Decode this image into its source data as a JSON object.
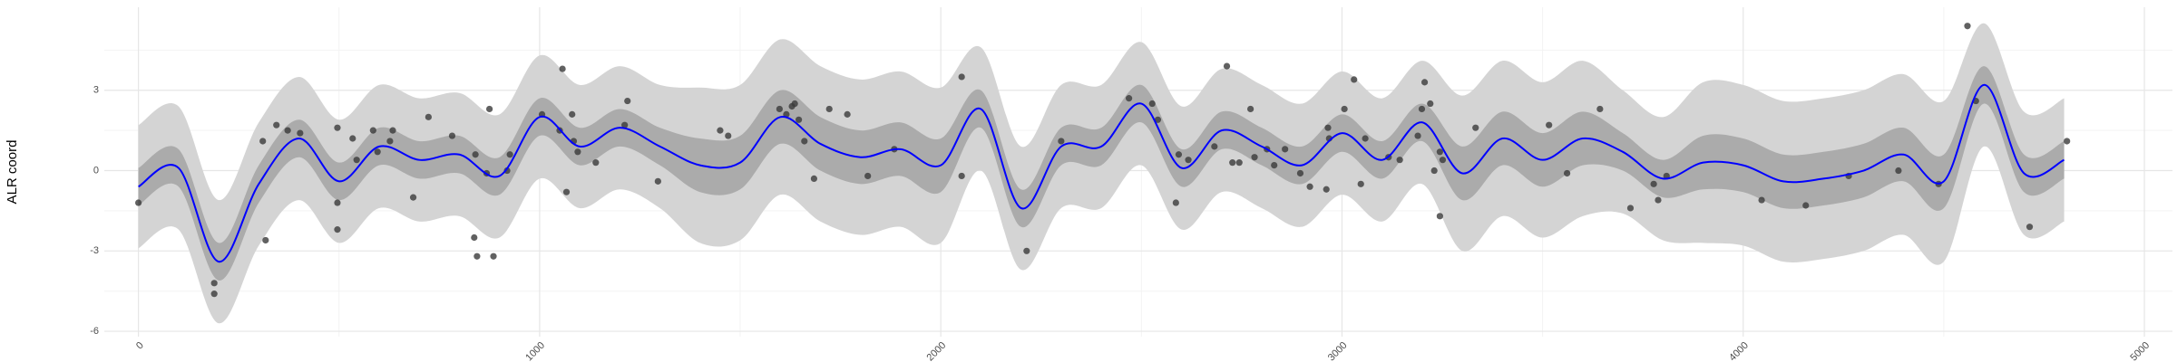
{
  "chart_data": {
    "type": "scatter",
    "y_label": "ALR coord",
    "xlim": [
      -85,
      5070
    ],
    "ylim": [
      -6.2,
      6.1
    ],
    "xticks": [
      0,
      1000,
      2000,
      3000,
      4000,
      5000
    ],
    "yticks": [
      -6,
      -3,
      0,
      3
    ],
    "x_minor_ticks": [
      500,
      1500,
      2500,
      3500,
      4500
    ],
    "y_minor_ticks": [
      -4.5,
      -1.5,
      1.5,
      4.5
    ],
    "grid": true,
    "x": [
      0,
      189,
      189,
      317,
      310,
      344,
      372,
      403,
      496,
      496,
      496,
      534,
      544,
      585,
      596,
      627,
      634,
      685,
      723,
      782,
      837,
      844,
      885,
      840,
      868,
      875,
      919,
      926,
      1006,
      1050,
      1057,
      1067,
      1081,
      1085,
      1095,
      1140,
      1212,
      1219,
      1295,
      1450,
      1470,
      1598,
      1615,
      1629,
      1636,
      1646,
      1660,
      1684,
      1722,
      1767,
      1818,
      1884,
      2052,
      2052,
      2214,
      2300,
      2469,
      2527,
      2541,
      2586,
      2593,
      2617,
      2682,
      2713,
      2727,
      2744,
      2772,
      2782,
      2813,
      2831,
      2858,
      2896,
      2920,
      2961,
      2965,
      2968,
      3006,
      3030,
      3047,
      3058,
      3116,
      3144,
      3189,
      3199,
      3206,
      3220,
      3230,
      3244,
      3244,
      3251,
      3333,
      3516,
      3561,
      3643,
      3719,
      3777,
      3788,
      3809,
      4046,
      4156,
      4263,
      4387,
      4487,
      4559,
      4580,
      4714,
      4807
    ],
    "y": [
      -1.2,
      -4.2,
      -4.6,
      -2.6,
      1.1,
      1.7,
      1.5,
      1.4,
      1.6,
      -1.2,
      -2.2,
      1.2,
      0.4,
      1.5,
      0.7,
      1.1,
      1.5,
      -1.0,
      2.0,
      1.3,
      -2.5,
      -3.2,
      -3.2,
      0.6,
      -0.1,
      2.3,
      0.0,
      0.6,
      2.1,
      1.5,
      3.8,
      -0.8,
      2.1,
      1.1,
      0.7,
      0.3,
      1.7,
      2.6,
      -0.4,
      1.5,
      1.3,
      2.3,
      2.1,
      2.4,
      2.5,
      1.9,
      1.1,
      -0.3,
      2.3,
      2.1,
      -0.2,
      0.8,
      -0.2,
      3.5,
      -3.0,
      1.1,
      2.7,
      2.5,
      1.9,
      -1.2,
      0.6,
      0.4,
      0.9,
      3.9,
      0.3,
      0.3,
      2.3,
      0.5,
      0.8,
      0.2,
      0.8,
      -0.1,
      -0.6,
      -0.7,
      1.6,
      1.2,
      2.3,
      3.4,
      -0.5,
      1.2,
      0.5,
      0.4,
      1.3,
      2.3,
      3.3,
      2.5,
      0.0,
      0.7,
      -1.7,
      0.4,
      1.6,
      1.7,
      -0.1,
      2.3,
      -1.4,
      -0.5,
      -1.1,
      -0.2,
      -1.1,
      -1.3,
      -0.2,
      0.0,
      -0.5,
      5.4,
      2.6,
      -2.1,
      1.1
    ],
    "point_color": "#3a3a3a",
    "fit": {
      "color": "#0000ff",
      "x": [
        0,
        100,
        200,
        300,
        400,
        500,
        600,
        700,
        800,
        900,
        1000,
        1100,
        1200,
        1300,
        1400,
        1500,
        1600,
        1700,
        1800,
        1900,
        2000,
        2100,
        2200,
        2300,
        2400,
        2500,
        2600,
        2700,
        2800,
        2900,
        3000,
        3100,
        3200,
        3300,
        3400,
        3500,
        3600,
        3700,
        3800,
        3900,
        4000,
        4100,
        4200,
        4300,
        4400,
        4500,
        4600,
        4700,
        4800
      ],
      "mean": [
        -0.6,
        0.1,
        -3.4,
        -0.5,
        1.2,
        -0.4,
        0.9,
        0.4,
        0.6,
        -0.2,
        2.0,
        0.9,
        1.6,
        0.9,
        0.2,
        0.3,
        2.0,
        1.0,
        0.5,
        0.8,
        0.2,
        2.3,
        -1.4,
        0.9,
        0.9,
        2.5,
        0.1,
        1.5,
        0.9,
        0.2,
        1.4,
        0.4,
        1.8,
        -0.1,
        1.2,
        0.4,
        1.2,
        0.7,
        -0.3,
        0.3,
        0.2,
        -0.4,
        -0.3,
        0.0,
        0.6,
        -0.4,
        3.2,
        -0.1,
        0.4
      ],
      "bands": [
        {
          "color": "#d4d4d4",
          "lower": [
            -2.9,
            -2.2,
            -5.7,
            -2.8,
            -1.1,
            -2.7,
            -1.4,
            -1.9,
            -1.7,
            -2.5,
            -0.3,
            -1.4,
            -0.7,
            -1.4,
            -2.7,
            -2.6,
            -0.9,
            -1.9,
            -2.4,
            -2.1,
            -2.7,
            0.0,
            -3.7,
            -1.4,
            -1.4,
            0.2,
            -2.2,
            -0.8,
            -1.4,
            -2.1,
            -0.9,
            -1.9,
            -0.5,
            -3.0,
            -1.7,
            -2.5,
            -1.7,
            -1.6,
            -2.6,
            -2.7,
            -2.8,
            -3.4,
            -3.3,
            -3.0,
            -2.4,
            -3.4,
            0.9,
            -2.4,
            -1.9
          ],
          "upper": [
            1.7,
            2.4,
            -1.1,
            1.8,
            3.5,
            1.9,
            3.2,
            2.7,
            2.9,
            2.1,
            4.3,
            3.2,
            3.9,
            3.2,
            3.1,
            3.2,
            4.9,
            3.9,
            3.4,
            3.7,
            3.1,
            4.6,
            0.9,
            3.2,
            3.2,
            4.8,
            2.4,
            3.8,
            3.2,
            2.5,
            3.7,
            2.7,
            4.1,
            2.8,
            4.1,
            3.3,
            4.1,
            3.0,
            2.0,
            3.3,
            3.2,
            2.6,
            2.7,
            3.0,
            3.6,
            2.6,
            5.5,
            2.2,
            2.7
          ]
        },
        {
          "color": "#ababab",
          "lower": [
            -1.3,
            -0.6,
            -4.1,
            -1.2,
            0.5,
            -1.1,
            0.2,
            -0.3,
            -0.1,
            -0.9,
            1.3,
            0.2,
            0.9,
            0.2,
            -0.8,
            -0.7,
            1.0,
            0.0,
            -0.5,
            -0.2,
            -0.8,
            1.6,
            -2.1,
            0.2,
            0.2,
            1.8,
            -0.6,
            0.8,
            0.2,
            -0.5,
            0.7,
            -0.3,
            1.1,
            -1.1,
            0.2,
            -0.6,
            0.2,
            0.0,
            -1.0,
            -0.7,
            -0.8,
            -1.4,
            -1.3,
            -1.0,
            -0.4,
            -1.4,
            2.5,
            -0.8,
            -0.3
          ],
          "upper": [
            0.1,
            0.8,
            -2.7,
            0.2,
            1.9,
            0.3,
            1.6,
            1.1,
            1.3,
            0.5,
            2.7,
            1.6,
            2.3,
            1.6,
            1.2,
            1.3,
            3.0,
            2.0,
            1.5,
            1.8,
            1.2,
            3.0,
            -0.7,
            1.6,
            1.6,
            3.2,
            0.8,
            2.2,
            1.6,
            0.9,
            2.1,
            1.1,
            2.5,
            0.9,
            2.2,
            1.4,
            2.2,
            1.4,
            0.4,
            1.3,
            1.2,
            0.6,
            0.7,
            1.0,
            1.6,
            0.6,
            3.9,
            0.6,
            1.1
          ]
        }
      ]
    }
  }
}
